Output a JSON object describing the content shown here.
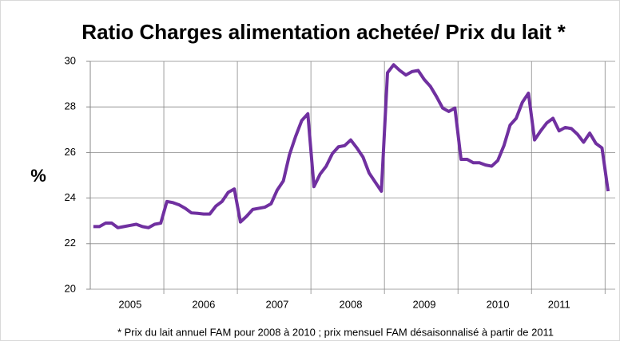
{
  "chart_data": {
    "type": "line",
    "title": "Ratio Charges alimentation achetée/ Prix du lait *",
    "y_label": "%",
    "footnote": "* Prix du lait annuel FAM pour 2008 à 2010 ; prix mensuel FAM désaisonnalisé à partir de 2011",
    "categories": [
      null,
      null,
      null,
      null,
      null,
      null,
      "2005",
      null,
      null,
      null,
      null,
      null,
      null,
      null,
      null,
      null,
      null,
      null,
      "2006",
      null,
      null,
      null,
      null,
      null,
      null,
      null,
      null,
      null,
      null,
      null,
      "2007",
      null,
      null,
      null,
      null,
      null,
      null,
      null,
      null,
      null,
      null,
      null,
      "2008",
      null,
      null,
      null,
      null,
      null,
      null,
      null,
      null,
      null,
      null,
      null,
      "2009",
      null,
      null,
      null,
      null,
      null,
      null,
      null,
      null,
      null,
      null,
      null,
      "2010",
      null,
      null,
      null,
      null,
      null,
      null,
      null,
      null,
      null,
      "2011",
      null,
      null,
      null,
      null,
      null,
      null,
      null,
      null
    ],
    "series": [
      {
        "name": "Ratio",
        "color": "#7030a0",
        "values": [
          22.75,
          22.75,
          22.9,
          22.9,
          22.7,
          22.75,
          22.8,
          22.85,
          22.75,
          22.7,
          22.85,
          22.9,
          23.85,
          23.8,
          23.7,
          23.55,
          23.35,
          23.33,
          23.3,
          23.3,
          23.65,
          23.85,
          24.25,
          24.4,
          22.95,
          23.2,
          23.5,
          23.55,
          23.6,
          23.75,
          24.35,
          24.75,
          25.9,
          26.7,
          27.4,
          27.7,
          24.5,
          25.05,
          25.4,
          25.95,
          26.25,
          26.3,
          26.55,
          26.2,
          25.8,
          25.1,
          24.7,
          24.3,
          29.5,
          29.85,
          29.6,
          29.4,
          29.55,
          29.6,
          29.2,
          28.9,
          28.45,
          27.95,
          27.8,
          27.95,
          25.7,
          25.7,
          25.55,
          25.55,
          25.45,
          25.4,
          25.65,
          26.3,
          27.2,
          27.5,
          28.2,
          28.6,
          26.55,
          26.95,
          27.3,
          27.5,
          26.95,
          27.1,
          27.05,
          26.8,
          26.45,
          26.85,
          26.4,
          26.2,
          24.3
        ]
      }
    ],
    "ylim": [
      20,
      30
    ],
    "yticks": [
      20,
      22,
      24,
      26,
      28,
      30
    ],
    "grid": true
  }
}
